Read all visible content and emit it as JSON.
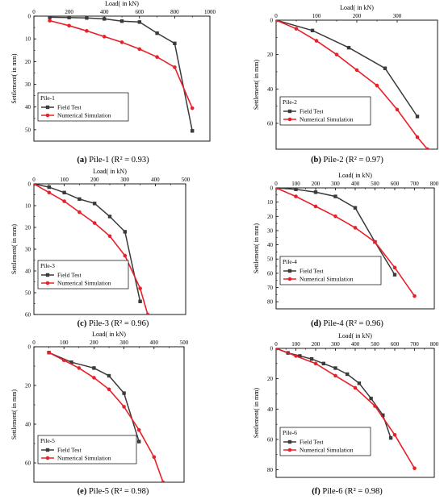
{
  "figure": {
    "colors": {
      "field": "#3a3a3a",
      "numerical": "#e8202a",
      "axis": "#000000"
    }
  },
  "chart_data": [
    {
      "type": "line",
      "panel_label": "Pile-1",
      "caption_letter": "(a)",
      "caption_text": "Pile-1 (R² = 0.93)",
      "xlabel": "Load( in kN)",
      "ylabel": "Settlement( in mm)",
      "xlim": [
        0,
        1000
      ],
      "ylim": [
        0,
        55
      ],
      "xticks": [
        0,
        200,
        400,
        600,
        800,
        1000
      ],
      "yticks": [
        0,
        10,
        20,
        30,
        40,
        50
      ],
      "series": [
        {
          "name": "Field Test",
          "key": "field",
          "x": [
            90,
            200,
            300,
            400,
            500,
            600,
            700,
            800,
            900
          ],
          "y": [
            0.5,
            0.6,
            0.8,
            1.2,
            2.2,
            2.6,
            7.5,
            12.0,
            50.5
          ]
        },
        {
          "name": "Numerical Simulation",
          "key": "numerical",
          "x": [
            90,
            200,
            300,
            400,
            500,
            600,
            700,
            800,
            900
          ],
          "y": [
            2.0,
            4.2,
            6.5,
            9.0,
            11.5,
            14.5,
            18.0,
            22.5,
            40.5
          ]
        }
      ]
    },
    {
      "type": "line",
      "panel_label": "Pile-2",
      "caption_letter": "(b)",
      "caption_text": "Pile-2 (R² = 0.97)",
      "xlabel": "Load( in kN)",
      "ylabel": "Settlement( in mm)",
      "xlim": [
        0,
        400
      ],
      "ylim": [
        0,
        75
      ],
      "xticks": [
        0,
        100,
        200,
        300
      ],
      "yticks": [
        0,
        20,
        40,
        60
      ],
      "series": [
        {
          "name": "Field Test",
          "key": "field",
          "x": [
            0,
            90,
            180,
            270,
            350
          ],
          "y": [
            0,
            6,
            16,
            28,
            56
          ]
        },
        {
          "name": "Numerical Simulation",
          "key": "numerical",
          "x": [
            0,
            50,
            100,
            150,
            200,
            250,
            300,
            350,
            375
          ],
          "y": [
            0,
            5,
            12,
            20,
            29,
            38,
            52,
            68,
            75
          ]
        }
      ]
    },
    {
      "type": "line",
      "panel_label": "Pile-3",
      "caption_letter": "(c)",
      "caption_text": "Pile-3 (R² = 0.96)",
      "xlabel": "Load( in kN)",
      "ylabel": "Settlement( in mm)",
      "xlim": [
        0,
        500
      ],
      "ylim": [
        0,
        60
      ],
      "xticks": [
        0,
        100,
        200,
        300,
        400,
        500
      ],
      "yticks": [
        0,
        10,
        20,
        30,
        40,
        50,
        60
      ],
      "series": [
        {
          "name": "Field Test",
          "key": "field",
          "x": [
            0,
            50,
            100,
            150,
            200,
            250,
            300,
            350
          ],
          "y": [
            0,
            1.5,
            4,
            7,
            9,
            15,
            22,
            54
          ]
        },
        {
          "name": "Numerical Simulation",
          "key": "numerical",
          "x": [
            0,
            50,
            100,
            150,
            200,
            250,
            300,
            350,
            375
          ],
          "y": [
            0,
            4,
            8,
            13,
            18,
            24,
            33,
            48,
            60
          ]
        }
      ]
    },
    {
      "type": "line",
      "panel_label": "Pile-4",
      "caption_letter": "(d)",
      "caption_text": "Pile-4 (R² = 0.96)",
      "xlabel": "Load( in kN)",
      "ylabel": "Settlement( in mm)",
      "xlim": [
        0,
        800
      ],
      "ylim": [
        0,
        85
      ],
      "xticks": [
        0,
        100,
        200,
        300,
        400,
        500,
        600,
        700,
        800
      ],
      "yticks": [
        0,
        10,
        20,
        30,
        40,
        50,
        60,
        70,
        80
      ],
      "series": [
        {
          "name": "Field Test",
          "key": "field",
          "x": [
            0,
            100,
            200,
            300,
            400,
            500,
            600
          ],
          "y": [
            0,
            1,
            3,
            6,
            14,
            38,
            61
          ]
        },
        {
          "name": "Numerical Simulation",
          "key": "numerical",
          "x": [
            0,
            100,
            200,
            300,
            400,
            500,
            600,
            700
          ],
          "y": [
            0,
            6,
            13,
            20,
            28,
            38,
            56,
            76
          ]
        }
      ]
    },
    {
      "type": "line",
      "panel_label": "Pile-5",
      "caption_letter": "(e)",
      "caption_text": "Pile-5 (R² = 0.98)",
      "xlabel": "Load( in kN)",
      "ylabel": "Settlement( in mm)",
      "xlim": [
        0,
        500
      ],
      "ylim": [
        0,
        70
      ],
      "xticks": [
        0,
        100,
        200,
        300,
        400,
        500
      ],
      "yticks": [
        0,
        20,
        40,
        60
      ],
      "series": [
        {
          "name": "Field Test",
          "key": "field",
          "x": [
            50,
            125,
            200,
            250,
            300,
            350
          ],
          "y": [
            3,
            8,
            11,
            15,
            24,
            49
          ]
        },
        {
          "name": "Numerical Simulation",
          "key": "numerical",
          "x": [
            50,
            100,
            150,
            200,
            250,
            300,
            350,
            400,
            430
          ],
          "y": [
            3,
            7,
            11,
            16,
            22,
            31,
            43,
            57,
            70
          ]
        }
      ]
    },
    {
      "type": "line",
      "panel_label": "Pile-6",
      "caption_letter": "(f)",
      "caption_text": "Pile-6 (R² = 0.98)",
      "xlabel": "Load( in kN)",
      "ylabel": "Settlement( in mm)",
      "xlim": [
        0,
        800
      ],
      "ylim": [
        0,
        85
      ],
      "xticks": [
        0,
        100,
        200,
        300,
        400,
        500,
        600,
        700,
        800
      ],
      "yticks": [
        0,
        20,
        40,
        60,
        80
      ],
      "series": [
        {
          "name": "Field Test",
          "key": "field",
          "x": [
            0,
            60,
            120,
            180,
            240,
            300,
            360,
            420,
            480,
            540,
            580
          ],
          "y": [
            0,
            3,
            5,
            7,
            10,
            13,
            17,
            23,
            33,
            44,
            59
          ]
        },
        {
          "name": "Numerical Simulation",
          "key": "numerical",
          "x": [
            0,
            100,
            200,
            300,
            400,
            500,
            600,
            700
          ],
          "y": [
            0,
            5,
            10,
            18,
            26,
            38,
            57,
            79
          ]
        }
      ]
    }
  ]
}
